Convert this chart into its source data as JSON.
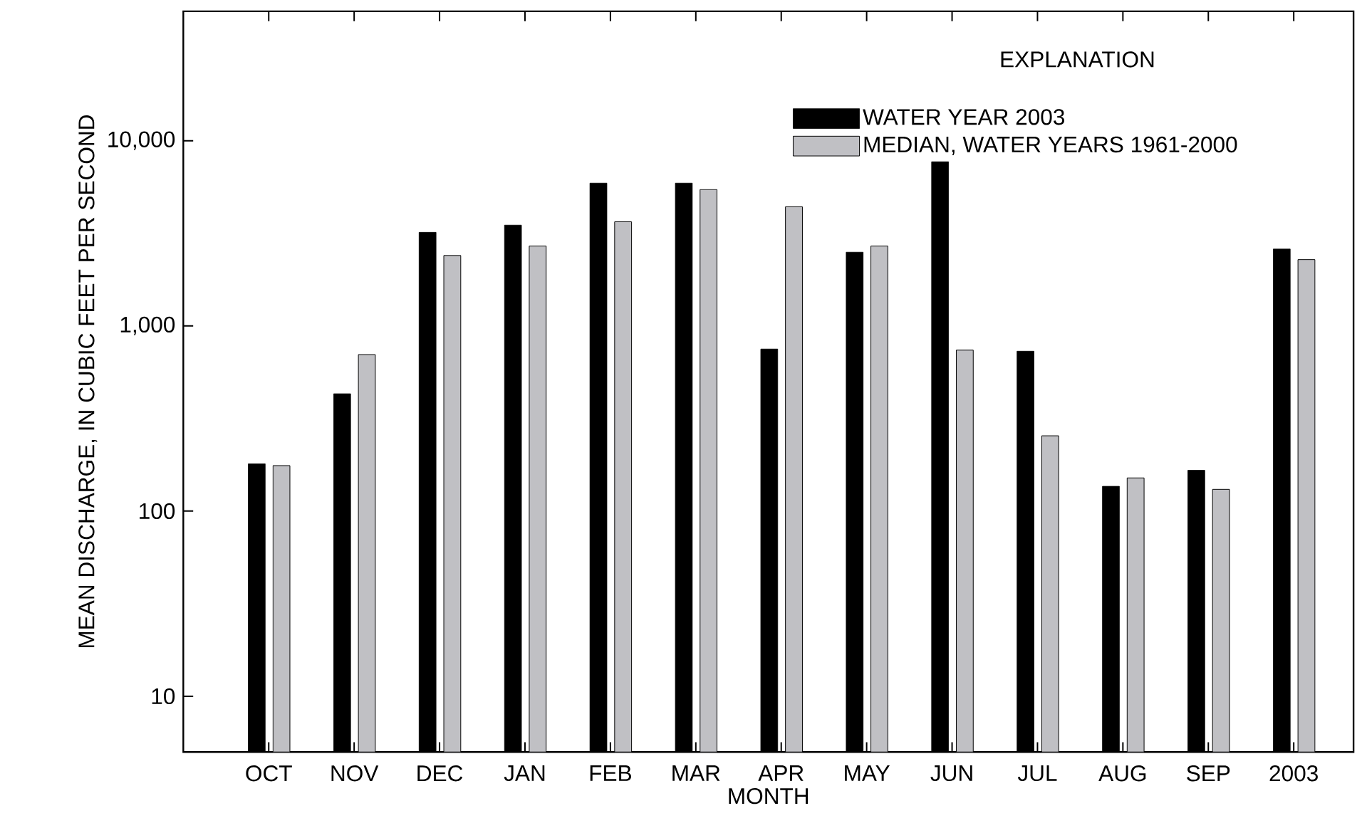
{
  "chart_data": {
    "type": "bar",
    "xlabel": "MONTH",
    "ylabel": "MEAN DISCHARGE, IN CUBIC FEET PER SECOND",
    "legend_title": "EXPLANATION",
    "categories": [
      "OCT",
      "NOV",
      "DEC",
      "JAN",
      "FEB",
      "MAR",
      "APR",
      "MAY",
      "JUN",
      "JUL",
      "AUG",
      "SEP",
      "2003"
    ],
    "series": [
      {
        "name": "WATER YEAR 2003",
        "color": "#000000",
        "values": [
          180,
          430,
          3200,
          3500,
          5900,
          5900,
          750,
          2500,
          7700,
          730,
          136,
          166,
          2600
        ]
      },
      {
        "name": "MEDIAN, WATER YEARS 1961-2000",
        "color": "#c0c0c4",
        "values": [
          176,
          700,
          2400,
          2700,
          3650,
          5450,
          4400,
          2700,
          740,
          255,
          151,
          131,
          2280
        ]
      }
    ],
    "log": true,
    "ylim": [
      5,
      50000
    ],
    "yticks": [
      10,
      100,
      {
        "value": 1000,
        "label": "1,000"
      },
      {
        "value": 10000,
        "label": "10,000"
      }
    ],
    "legend": "top right"
  }
}
